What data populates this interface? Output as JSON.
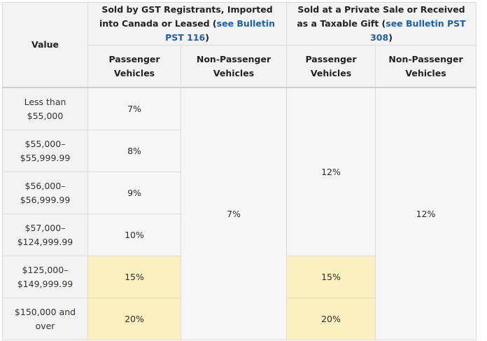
{
  "table": {
    "header": {
      "value_label": "Value",
      "group1": {
        "text_pre": "Sold by GST Registrants, Imported into Canada or Leased (",
        "link": "see Bulletin PST 116",
        "text_post": ")"
      },
      "group2": {
        "text_pre": "Sold at a Private Sale or Received as a Taxable Gift (",
        "link": "see Bulletin PST 308",
        "text_post": ")"
      },
      "passenger": "Passenger Vehicles",
      "non_passenger": "Non-Passenger Vehicles"
    },
    "rows": [
      {
        "value": "Less than $55,000",
        "gst_passenger": "7%"
      },
      {
        "value": "$55,000–$55,999.99",
        "gst_passenger": "8%"
      },
      {
        "value": "$56,000–$56,999.99",
        "gst_passenger": "9%"
      },
      {
        "value": "$57,000–$124,999.99",
        "gst_passenger": "10%"
      },
      {
        "value": "$125,000–$149,999.99",
        "gst_passenger": "15%",
        "private_passenger": "15%"
      },
      {
        "value": "$150,000 and over",
        "gst_passenger": "20%",
        "private_passenger": "20%"
      }
    ],
    "merged": {
      "gst_non_passenger": "7%",
      "private_passenger_lower": "12%",
      "private_non_passenger": "12%"
    }
  },
  "colors": {
    "highlight": "#fdf0c0",
    "link": "#1a5fb4"
  }
}
